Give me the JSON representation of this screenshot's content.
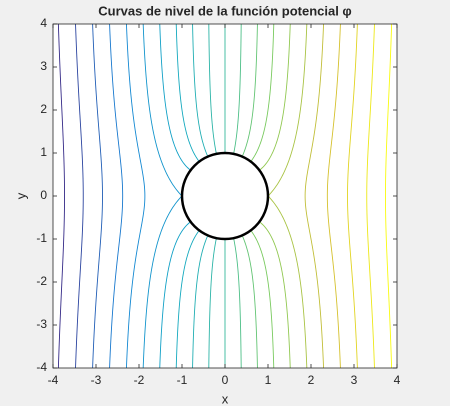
{
  "chart_data": {
    "type": "contour",
    "title": "Curvas de nivel de la función potencial φ",
    "x_label": "x",
    "y_label": "y",
    "levels": [
      -4,
      -3.6,
      -3.2,
      -2.8,
      -2.4,
      -2,
      -1.6,
      -1.2,
      -0.8,
      -0.4,
      0,
      0.4,
      0.8,
      1.2,
      1.6,
      2,
      2.4,
      2.8,
      3.2,
      3.6,
      4
    ],
    "colormap": "parula",
    "xlim": [
      -4,
      4
    ],
    "ylim": [
      -4,
      4
    ],
    "xticks": [
      -4,
      -3,
      -2,
      -1,
      0,
      1,
      2,
      3,
      4
    ],
    "yticks": [
      -4,
      -3,
      -2,
      -1,
      0,
      1,
      2,
      3,
      4
    ]
  }
}
